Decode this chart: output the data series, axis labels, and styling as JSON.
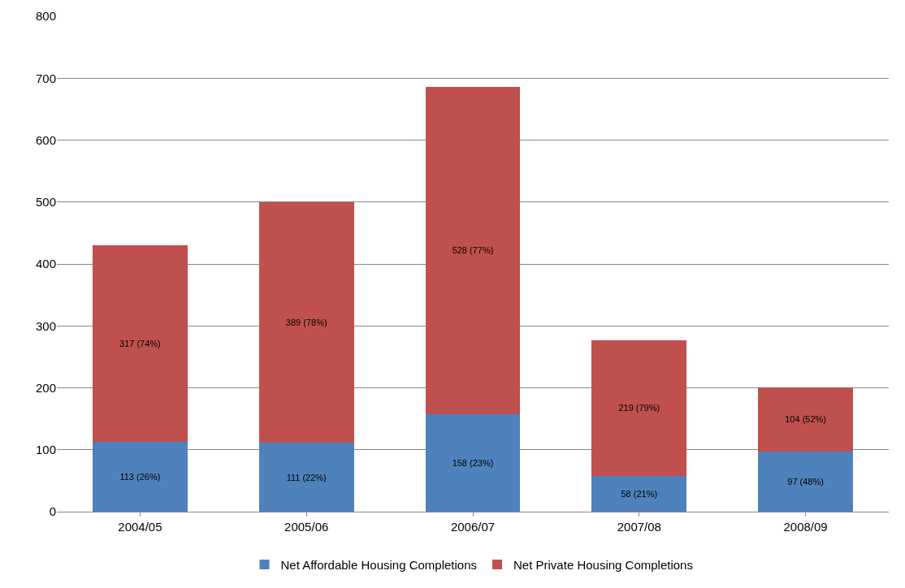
{
  "chart_data": {
    "type": "bar",
    "stacked": true,
    "categories": [
      "2004/05",
      "2005/06",
      "2006/07",
      "2007/08",
      "2008/09"
    ],
    "series": [
      {
        "name": "Net Affordable Housing Completions",
        "color": "#4f81bd",
        "values": [
          113,
          111,
          158,
          58,
          97
        ],
        "value_labels": [
          "113 (26%)",
          "111 (22%)",
          "158 (23%)",
          "58 (21%)",
          "97 (48%)"
        ]
      },
      {
        "name": "Net Private Housing Completions",
        "color": "#c0504d",
        "values": [
          317,
          389,
          528,
          219,
          104
        ],
        "value_labels": [
          "317 (74%)",
          "389 (78%)",
          "528 (77%)",
          "219 (79%)",
          "104 (52%)"
        ]
      }
    ],
    "ylim": [
      0,
      800
    ],
    "yticks": [
      0,
      100,
      200,
      300,
      400,
      500,
      600,
      700,
      800
    ],
    "grid": "y",
    "legend": "bottom"
  }
}
